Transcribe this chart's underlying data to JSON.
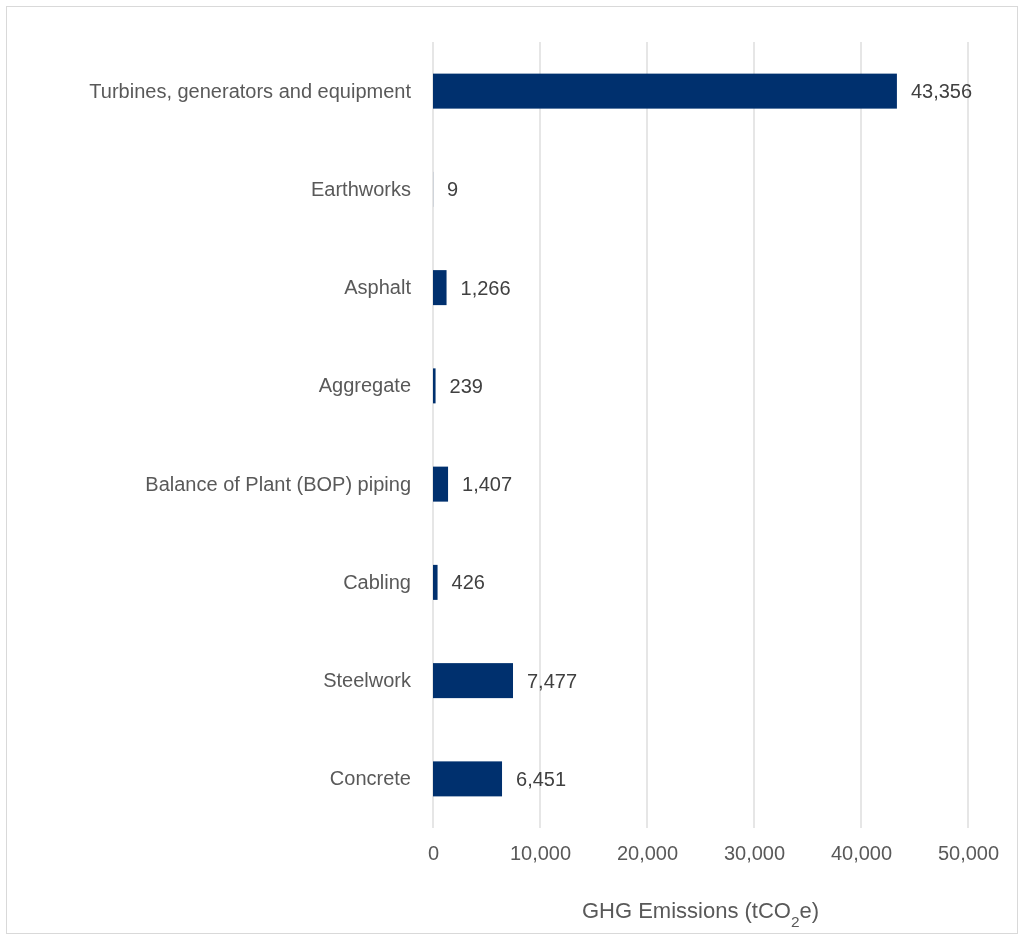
{
  "chart_data": {
    "type": "bar",
    "orientation": "horizontal",
    "categories": [
      "Turbines, generators and equipment",
      "Earthworks",
      "Asphalt",
      "Aggregate",
      "Balance of Plant (BOP) piping",
      "Cabling",
      "Steelwork",
      "Concrete"
    ],
    "values": [
      43356,
      9,
      1266,
      239,
      1407,
      426,
      7477,
      6451
    ],
    "color": "#00306e",
    "xlabel": "GHG Emissions (tCO$_{2}$e)",
    "xlim": [
      0,
      50000
    ],
    "xticks": [
      {
        "value": 0,
        "label": "0"
      },
      {
        "value": 10000,
        "label": "10,000"
      },
      {
        "value": 20000,
        "label": "20,000"
      },
      {
        "value": 30000,
        "label": "30,000"
      },
      {
        "value": 40000,
        "label": "40,000"
      },
      {
        "value": 50000,
        "label": "50,000"
      }
    ],
    "grid": "x",
    "value_labels": [
      "43,356",
      "9",
      "1,266",
      "239",
      "1,407",
      "426",
      "7,477",
      "6,451"
    ]
  }
}
